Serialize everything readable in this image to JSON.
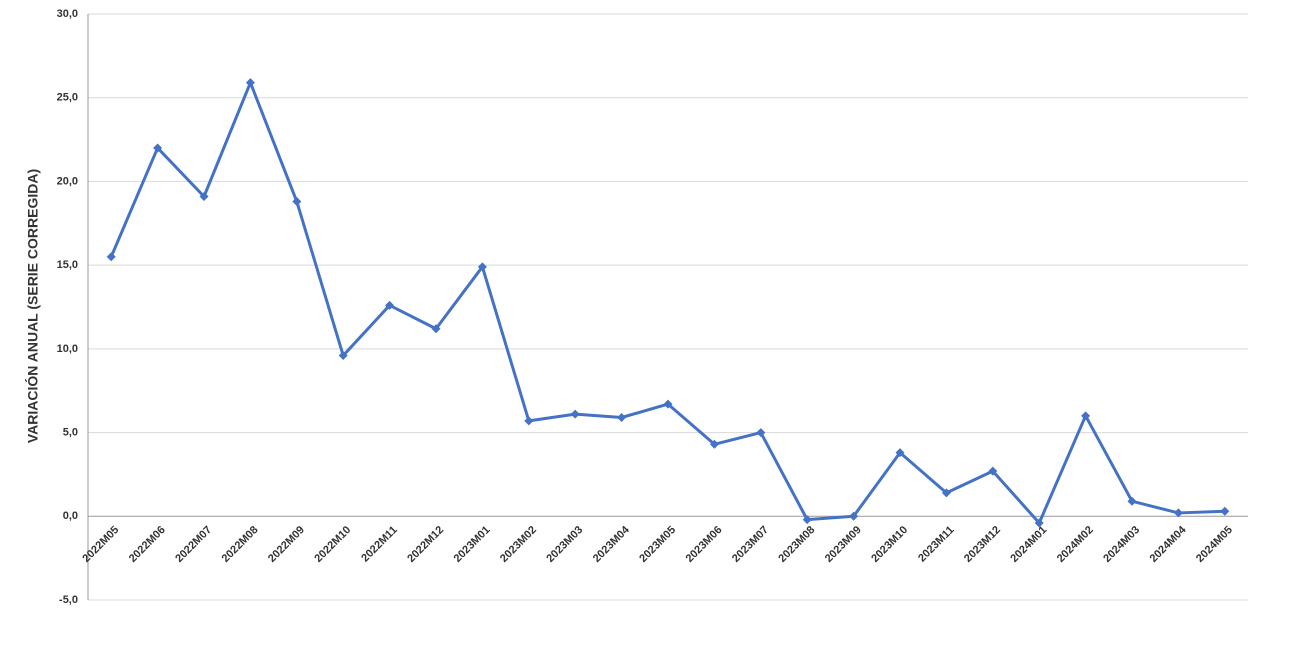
{
  "chart_data": {
    "type": "line",
    "y_label": "VARIACIÓN ANUAL (SERIE CORREGIDA)",
    "categories": [
      "2022M05",
      "2022M06",
      "2022M07",
      "2022M08",
      "2022M09",
      "2022M10",
      "2022M11",
      "2022M12",
      "2023M01",
      "2023M02",
      "2023M03",
      "2023M04",
      "2023M05",
      "2023M06",
      "2023M07",
      "2023M08",
      "2023M09",
      "2023M10",
      "2023M11",
      "2023M12",
      "2024M01",
      "2024M02",
      "2024M03",
      "2024M04",
      "2024M05"
    ],
    "values": [
      15.5,
      22.0,
      19.1,
      25.9,
      18.8,
      9.6,
      12.6,
      11.2,
      14.9,
      5.7,
      6.1,
      5.9,
      6.7,
      4.3,
      5.0,
      -0.2,
      0.0,
      3.8,
      1.4,
      2.7,
      -0.4,
      6.0,
      0.9,
      0.2,
      0.3
    ],
    "color": "#4472c4",
    "ylim": [
      -5,
      30
    ],
    "yticks": [
      {
        "value": -5,
        "label": "-5,0"
      },
      {
        "value": 0,
        "label": "0,0"
      },
      {
        "value": 5,
        "label": "5,0"
      },
      {
        "value": 10,
        "label": "10,0"
      },
      {
        "value": 15,
        "label": "15,0"
      },
      {
        "value": 20,
        "label": "20,0"
      },
      {
        "value": 25,
        "label": "25,0"
      },
      {
        "value": 30,
        "label": "30,0"
      }
    ],
    "grid": true
  }
}
